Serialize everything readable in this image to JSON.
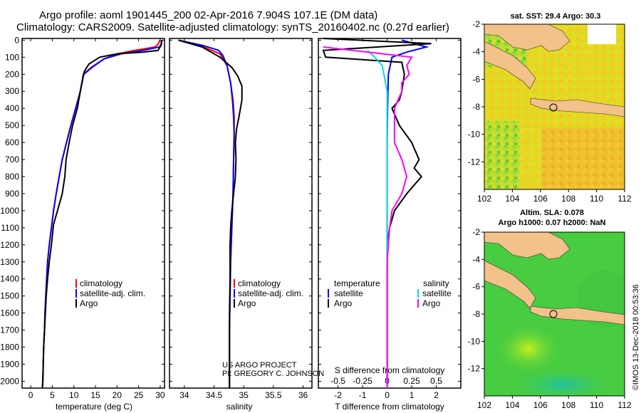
{
  "title_line1": "Argo profile: aoml 1901445_200 02-Apr-2016 7.904S 107.1E (DM data)",
  "title_line2": "Climatology: CARS2009. Satellite-adjusted climatology: synTS_20160402.nc (0.27d earlier)",
  "credit": "©IMOS 13-Dec-2018 00:53:36",
  "project_line1": "US ARGO PROJECT",
  "project_line2": "PI: GREGORY C. JOHNSON",
  "colors": {
    "argo": "#000000",
    "climatology": "#ff0000",
    "satellite": "#0000ff",
    "sat_salinity": "#00dddd",
    "argo_salinity": "#ff00ff",
    "land": "#f2c28a"
  },
  "chart_data": [
    {
      "type": "line",
      "id": "temperature",
      "xlabel": "temperature (deg C)",
      "x_ticks": [
        0,
        5,
        10,
        15,
        20,
        25,
        30
      ],
      "xlim": [
        -2,
        31
      ],
      "y_ticks": [
        0,
        100,
        200,
        300,
        400,
        500,
        600,
        700,
        800,
        900,
        1000,
        1100,
        1200,
        1300,
        1400,
        1500,
        1600,
        1700,
        1800,
        1900,
        2000
      ],
      "ylim": [
        2040,
        -10
      ],
      "legend": [
        "climatology",
        "satellite-adj. clim.",
        "Argo"
      ],
      "series": [
        {
          "name": "climatology",
          "color": "#ff0000",
          "points": [
            [
              29.9,
              0
            ],
            [
              29.6,
              20
            ],
            [
              28.8,
              40
            ],
            [
              24,
              60
            ],
            [
              20,
              80
            ],
            [
              17,
              110
            ],
            [
              14,
              160
            ],
            [
              12.2,
              200
            ],
            [
              11.5,
              300
            ],
            [
              10.4,
              400
            ],
            [
              9.3,
              500
            ],
            [
              8.3,
              600
            ],
            [
              7.3,
              700
            ],
            [
              6.6,
              800
            ],
            [
              5.9,
              900
            ],
            [
              5.3,
              1000
            ],
            [
              4.8,
              1100
            ],
            [
              4.3,
              1200
            ],
            [
              3.9,
              1300
            ],
            [
              3.7,
              1400
            ],
            [
              3.5,
              1500
            ],
            [
              3.3,
              1600
            ],
            [
              3.2,
              1700
            ],
            [
              3,
              1800
            ],
            [
              2.9,
              1900
            ],
            [
              2.8,
              2000
            ],
            [
              2.7,
              2040
            ]
          ]
        },
        {
          "name": "satellite-adj. clim.",
          "color": "#0000ff",
          "points": [
            [
              30.4,
              0
            ],
            [
              30.3,
              20
            ],
            [
              29.8,
              40
            ],
            [
              26,
              60
            ],
            [
              21,
              80
            ],
            [
              17,
              110
            ],
            [
              14.2,
              160
            ],
            [
              12.3,
              200
            ],
            [
              11.5,
              300
            ],
            [
              10.4,
              400
            ],
            [
              9.3,
              500
            ],
            [
              8.3,
              600
            ],
            [
              7.3,
              700
            ],
            [
              6.6,
              800
            ],
            [
              5.9,
              900
            ],
            [
              5.3,
              1000
            ],
            [
              4.8,
              1100
            ],
            [
              4.3,
              1200
            ],
            [
              3.9,
              1300
            ],
            [
              3.7,
              1400
            ],
            [
              3.5,
              1500
            ],
            [
              3.3,
              1600
            ],
            [
              3.2,
              1700
            ],
            [
              3,
              1800
            ],
            [
              2.9,
              1900
            ],
            [
              2.8,
              2000
            ],
            [
              2.7,
              2040
            ]
          ]
        },
        {
          "name": "Argo",
          "color": "#000000",
          "points": [
            [
              30.3,
              0
            ],
            [
              30.2,
              30
            ],
            [
              29.5,
              60
            ],
            [
              26,
              70
            ],
            [
              20,
              80
            ],
            [
              16,
              100
            ],
            [
              13.5,
              140
            ],
            [
              12.5,
              180
            ],
            [
              12.2,
              200
            ],
            [
              11.5,
              300
            ],
            [
              10.8,
              400
            ],
            [
              9.7,
              500
            ],
            [
              8.9,
              600
            ],
            [
              8.2,
              700
            ],
            [
              7.9,
              800
            ],
            [
              7.3,
              900
            ],
            [
              6.2,
              1000
            ],
            [
              5.3,
              1080
            ],
            [
              4.8,
              1200
            ],
            [
              4.3,
              1300
            ],
            [
              3.9,
              1400
            ],
            [
              3.6,
              1500
            ],
            [
              3.4,
              1600
            ],
            [
              3.2,
              1700
            ],
            [
              3,
              1800
            ],
            [
              2.9,
              1900
            ],
            [
              2.8,
              2000
            ],
            [
              2.7,
              2040
            ]
          ]
        }
      ]
    },
    {
      "type": "line",
      "id": "salinity",
      "xlabel": "salinity",
      "x_ticks": [
        34,
        34.5,
        35,
        35.5,
        36
      ],
      "xlim": [
        33.75,
        36.15
      ],
      "ylim": [
        2040,
        -10
      ],
      "legend": [
        "climatology",
        "satellite-adj. clim.",
        "Argo"
      ],
      "series": [
        {
          "name": "climatology",
          "color": "#ff0000",
          "points": [
            [
              33.9,
              0
            ],
            [
              34.25,
              30
            ],
            [
              34.6,
              80
            ],
            [
              34.72,
              150
            ],
            [
              34.78,
              250
            ],
            [
              34.82,
              350
            ],
            [
              34.84,
              450
            ],
            [
              34.84,
              550
            ],
            [
              34.83,
              700
            ],
            [
              34.82,
              900
            ],
            [
              34.8,
              1100
            ],
            [
              34.78,
              1300
            ],
            [
              34.77,
              1500
            ],
            [
              34.76,
              1700
            ],
            [
              34.76,
              1900
            ],
            [
              34.76,
              2040
            ]
          ]
        },
        {
          "name": "satellite-adj. clim.",
          "color": "#0000ff",
          "points": [
            [
              33.9,
              0
            ],
            [
              34.3,
              30
            ],
            [
              34.58,
              60
            ],
            [
              34.65,
              90
            ],
            [
              34.72,
              150
            ],
            [
              34.78,
              250
            ],
            [
              34.81,
              350
            ],
            [
              34.83,
              450
            ],
            [
              34.84,
              550
            ],
            [
              34.83,
              700
            ],
            [
              34.82,
              900
            ],
            [
              34.8,
              1100
            ],
            [
              34.78,
              1300
            ],
            [
              34.77,
              1500
            ],
            [
              34.76,
              1700
            ],
            [
              34.76,
              1900
            ],
            [
              34.76,
              2040
            ]
          ]
        },
        {
          "name": "Argo",
          "color": "#000000",
          "points": [
            [
              33.9,
              0
            ],
            [
              34.3,
              40
            ],
            [
              34.6,
              100
            ],
            [
              34.8,
              160
            ],
            [
              34.9,
              210
            ],
            [
              34.97,
              270
            ],
            [
              34.97,
              350
            ],
            [
              34.92,
              450
            ],
            [
              34.88,
              520
            ],
            [
              34.86,
              600
            ],
            [
              34.87,
              700
            ],
            [
              34.86,
              800
            ],
            [
              34.83,
              900
            ],
            [
              34.8,
              1000
            ],
            [
              34.78,
              1100
            ],
            [
              34.77,
              1200
            ],
            [
              34.77,
              1400
            ],
            [
              34.76,
              1600
            ],
            [
              34.76,
              1800
            ],
            [
              34.76,
              2040
            ]
          ]
        }
      ]
    },
    {
      "type": "line",
      "id": "difference",
      "xlabel": "T difference from climatology",
      "x_top_label": "S difference from climatology",
      "x_ticks": [
        -2,
        -1,
        0,
        1,
        2
      ],
      "x_ticks_s": [
        "-0.5",
        "-0.25",
        "0",
        "0.25",
        "0.5"
      ],
      "xlim": [
        -2.8,
        3.0
      ],
      "ylim": [
        2040,
        -10
      ],
      "legend": [
        "temperature",
        "satellite",
        "Argo",
        "salinity",
        "satellite",
        "Argo"
      ],
      "series": [
        {
          "name": "satellite",
          "color": "#0000ff",
          "points": [
            [
              0.6,
              0
            ],
            [
              1.6,
              40
            ],
            [
              0.8,
              70
            ],
            [
              0.2,
              100
            ],
            [
              0.05,
              200
            ],
            [
              0.02,
              400
            ],
            [
              0,
              600
            ],
            [
              0,
              800
            ],
            [
              0,
              1000
            ],
            [
              0,
              1200
            ],
            [
              0,
              1500
            ],
            [
              0,
              1800
            ],
            [
              0,
              2040
            ]
          ]
        },
        {
          "name": "Argo",
          "color": "#000000",
          "points": [
            [
              -2.6,
              -10
            ],
            [
              1.8,
              20
            ],
            [
              -2.6,
              60
            ],
            [
              -2.5,
              100
            ],
            [
              0.6,
              130
            ],
            [
              0.7,
              200
            ],
            [
              0.6,
              300
            ],
            [
              0.5,
              350
            ],
            [
              0.2,
              400
            ],
            [
              0.5,
              500
            ],
            [
              1,
              600
            ],
            [
              1.3,
              700
            ],
            [
              1.1,
              750
            ],
            [
              1.4,
              800
            ],
            [
              0.8,
              900
            ],
            [
              0.3,
              1000
            ],
            [
              0.1,
              1100
            ],
            [
              0,
              1200
            ],
            [
              0,
              1400
            ],
            [
              0,
              1600
            ],
            [
              0,
              1800
            ],
            [
              0,
              2040
            ]
          ]
        },
        {
          "name": "salinity satellite",
          "color": "#00dddd",
          "points": [
            [
              -0.8,
              60
            ],
            [
              -0.5,
              100
            ],
            [
              -0.2,
              150
            ],
            [
              0,
              300
            ],
            [
              0,
              500
            ],
            [
              0,
              700
            ],
            [
              0,
              900
            ],
            [
              0,
              1000
            ],
            [
              0,
              1200
            ],
            [
              0,
              1500
            ],
            [
              0,
              1800
            ],
            [
              0,
              2040
            ]
          ]
        },
        {
          "name": "salinity Argo",
          "color": "#ff00ff",
          "points": [
            [
              -2.6,
              40
            ],
            [
              1,
              100
            ],
            [
              0.8,
              150
            ],
            [
              0.9,
              200
            ],
            [
              0.6,
              250
            ],
            [
              0.6,
              300
            ],
            [
              0.3,
              400
            ],
            [
              0.3,
              500
            ],
            [
              0.3,
              600
            ],
            [
              0.6,
              700
            ],
            [
              0.8,
              800
            ],
            [
              0.6,
              900
            ],
            [
              0.2,
              1000
            ],
            [
              0.1,
              1100
            ],
            [
              0,
              1300
            ],
            [
              0,
              1500
            ],
            [
              0,
              1800
            ],
            [
              0,
              2040
            ]
          ]
        }
      ]
    },
    {
      "type": "heatmap",
      "id": "sst_map",
      "title": "sat. SST: 29.4 Argo: 30.3",
      "x_ticks": [
        102,
        104,
        106,
        108,
        110,
        112
      ],
      "y_ticks": [
        -2,
        -4,
        -6,
        -8,
        -10,
        -12
      ],
      "xlim": [
        102,
        112
      ],
      "ylim": [
        -14,
        -2
      ],
      "argo_position": [
        107.1,
        -7.904
      ]
    },
    {
      "type": "heatmap",
      "id": "sla_map",
      "title_line1": "Altim. SLA: 0.078",
      "title_line2": "Argo h1000: 0.07 h2000: NaN",
      "x_ticks": [
        102,
        104,
        106,
        108,
        110,
        112
      ],
      "y_ticks": [
        -2,
        -4,
        -6,
        -8,
        -10,
        -12
      ],
      "xlim": [
        102,
        112
      ],
      "ylim": [
        -14,
        -2
      ],
      "argo_position": [
        107.1,
        -7.904
      ]
    }
  ]
}
